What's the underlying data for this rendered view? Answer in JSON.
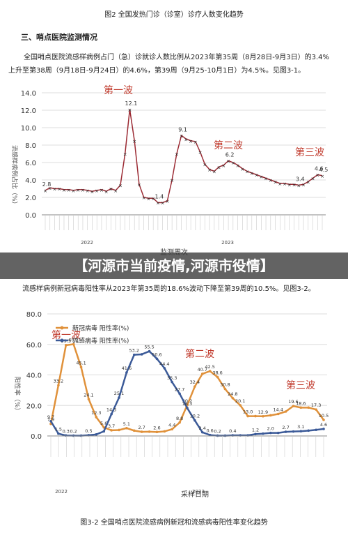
{
  "caption_top": "图2 全国发热门诊（诊室）诊疗人数变化趋势",
  "section_heading": "三、哨点医院监测情况",
  "paragraph1": "全国哨点医院流感样病例占门（急）诊就诊人数比例从2023年第35周（8月28日-9月3日）的3.4%上升至第38周（9月18日-9月24日）的4.6%，第39周（9月25-10月1日）为4.5%。见图3-1。",
  "banner": "【河源市当前疫情,河源市役情】",
  "paragraph2": "流感样病例新冠病毒阳性率从2023年第35周的18.6%波动下降至第39周的10.5%。见图3-2。",
  "caption_bottom": "图3-2 全国哨点医院流感病例新冠和流感病毒阳性率变化趋势",
  "chart_data": [
    {
      "type": "line",
      "y_label": "流感样病例占比（%）",
      "x_label": "监测周次",
      "years": [
        "2022",
        "2023"
      ],
      "annotations": [
        "第一波",
        "第二波",
        "第三波"
      ],
      "ylim": [
        0,
        14
      ],
      "yticks": [
        {
          "value": 0,
          "label": "0.0"
        },
        {
          "value": 2,
          "label": "2.0"
        },
        {
          "value": 4,
          "label": "4.0"
        },
        {
          "value": 6,
          "label": "6.0"
        },
        {
          "value": 8,
          "label": "8.0"
        },
        {
          "value": 10,
          "label": "10.0"
        },
        {
          "value": 12,
          "label": "12.0"
        },
        {
          "value": 14,
          "label": "14.0"
        }
      ],
      "grid": true,
      "series": [
        {
          "name": "流感样病例占比",
          "color": "#9b2a33",
          "values": [
            2.8,
            3.1,
            3.0,
            3.0,
            2.9,
            2.9,
            2.8,
            2.9,
            2.9,
            2.8,
            2.7,
            2.8,
            2.9,
            2.7,
            3.0,
            2.8,
            3.4,
            7.0,
            12.1,
            8.5,
            3.5,
            2.0,
            1.9,
            1.9,
            1.4,
            1.4,
            1.6,
            4.0,
            7.0,
            9.1,
            8.7,
            8.5,
            8.4,
            7.2,
            5.8,
            5.2,
            5.0,
            5.5,
            5.7,
            6.2,
            6.0,
            5.7,
            5.3,
            5.0,
            4.8,
            4.6,
            4.4,
            4.2,
            4.0,
            3.8,
            3.6,
            3.6,
            3.5,
            3.5,
            3.4,
            3.5,
            3.8,
            4.2,
            4.6,
            4.5
          ],
          "value_labels": [
            "2.8",
            null,
            null,
            null,
            null,
            null,
            null,
            null,
            null,
            null,
            null,
            null,
            null,
            null,
            null,
            null,
            null,
            null,
            "12.1",
            null,
            null,
            null,
            null,
            null,
            "1.4",
            null,
            null,
            null,
            null,
            "9.1",
            null,
            null,
            null,
            null,
            null,
            null,
            null,
            null,
            null,
            "6.2",
            null,
            null,
            null,
            null,
            null,
            null,
            null,
            null,
            null,
            null,
            null,
            null,
            null,
            null,
            "3.4",
            null,
            null,
            null,
            "4.6",
            "4.5"
          ]
        }
      ]
    },
    {
      "type": "line",
      "y_label": "阳性率（%）",
      "x_label": "采样日期",
      "years": [
        "2022",
        "2023"
      ],
      "annotations": [
        "第一波",
        "第二波",
        "第三波"
      ],
      "ylim": [
        0,
        80
      ],
      "yticks": [
        {
          "value": 0,
          "label": "0.0"
        },
        {
          "value": 20,
          "label": "20.0"
        },
        {
          "value": 40,
          "label": "40.0"
        },
        {
          "value": 60,
          "label": "60.0"
        },
        {
          "value": 80,
          "label": "80.0"
        }
      ],
      "grid": true,
      "series": [
        {
          "name": "新冠病毒 阳性率(%)",
          "color": "#e0913a",
          "values": [
            7.9,
            33.2,
            59.5,
            60.1,
            45.1,
            24.1,
            12.3,
            5.6,
            3.7,
            3.9,
            5.1,
            3.5,
            2.7,
            2.8,
            2.6,
            3.0,
            4.4,
            8.8,
            20.2,
            32.4,
            40.7,
            42.5,
            38.6,
            30.8,
            24.8,
            20.1,
            13.0,
            13.0,
            12.9,
            13.5,
            14.4,
            16.0,
            19.6,
            18.6,
            18.6,
            17.3,
            10.5
          ],
          "value_labels": [
            "7.9",
            "33.2",
            "59.5",
            "60.1",
            "45.1",
            "24.1",
            "12.3",
            "5.6",
            "3.7",
            null,
            "5.1",
            null,
            "2.7",
            null,
            "2.6",
            null,
            "4.4",
            "8.8",
            "20.2",
            "32.4",
            "40.7",
            "42.5",
            "38.6",
            "30.8",
            "24.8",
            "20.1",
            "13.0",
            null,
            "12.9",
            null,
            "14.4",
            null,
            "19.6",
            "18.6",
            null,
            "17.3",
            "10.5"
          ]
        },
        {
          "name": "流感病毒 阳性率(%)",
          "color": "#3b5a98",
          "values": [
            9.7,
            1.5,
            0.3,
            0.2,
            0.2,
            0.5,
            1.0,
            3.0,
            14.3,
            25.1,
            41.6,
            53.2,
            53.5,
            55.5,
            50.6,
            44.4,
            35.3,
            27.7,
            18.3,
            10.2,
            2.4,
            0.6,
            0.2,
            0.2,
            0.4,
            0.4,
            0.4,
            1.2,
            1.5,
            2.0,
            2.0,
            2.7,
            2.9,
            3.1,
            3.5,
            4.0,
            4.6
          ],
          "value_labels": [
            "9.7",
            "1.5",
            "0.3",
            "0.2",
            null,
            "0.5",
            null,
            null,
            "14.3",
            "25.1",
            "41.6",
            "53.2",
            null,
            "55.5",
            "50.6",
            "44.4",
            "35.3",
            "27.7",
            "18.3",
            "10.2",
            "2.4",
            "0.6",
            "0.2",
            null,
            "0.4",
            null,
            null,
            "1.2",
            null,
            "2.0",
            null,
            "2.7",
            null,
            "3.1",
            null,
            null,
            "4.6"
          ]
        }
      ]
    }
  ]
}
